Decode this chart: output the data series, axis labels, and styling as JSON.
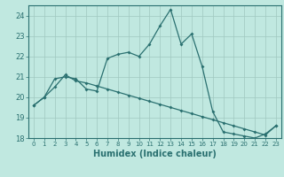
{
  "title": "",
  "xlabel": "Humidex (Indice chaleur)",
  "background_color": "#c0e8e0",
  "grid_color": "#a0c8c0",
  "line_color": "#2a7070",
  "xlim": [
    -0.5,
    23.5
  ],
  "ylim": [
    18.0,
    24.5
  ],
  "yticks": [
    18,
    19,
    20,
    21,
    22,
    23,
    24
  ],
  "xticks": [
    0,
    1,
    2,
    3,
    4,
    5,
    6,
    7,
    8,
    9,
    10,
    11,
    12,
    13,
    14,
    15,
    16,
    17,
    18,
    19,
    20,
    21,
    22,
    23
  ],
  "curve1_x": [
    0,
    1,
    2,
    3,
    4,
    5,
    6,
    7,
    8,
    9,
    10,
    11,
    12,
    13,
    14,
    15,
    16,
    17,
    18,
    19,
    20,
    21,
    22,
    23
  ],
  "curve1_y": [
    19.6,
    20.0,
    20.9,
    21.0,
    20.9,
    20.4,
    20.3,
    21.9,
    22.1,
    22.2,
    22.0,
    22.6,
    23.5,
    24.3,
    22.6,
    23.1,
    21.5,
    19.3,
    18.3,
    18.2,
    18.1,
    18.0,
    18.2,
    18.6
  ],
  "curve2_x": [
    0,
    1,
    2,
    3,
    4,
    5,
    6,
    7,
    8,
    9,
    10,
    11,
    12,
    13,
    14,
    15,
    16,
    17,
    18,
    19,
    20,
    21,
    22,
    23
  ],
  "curve2_y": [
    19.6,
    20.0,
    20.5,
    21.1,
    20.8,
    20.7,
    20.55,
    20.4,
    20.25,
    20.1,
    19.95,
    19.8,
    19.65,
    19.5,
    19.35,
    19.2,
    19.05,
    18.9,
    18.75,
    18.6,
    18.45,
    18.3,
    18.15,
    18.6
  ]
}
